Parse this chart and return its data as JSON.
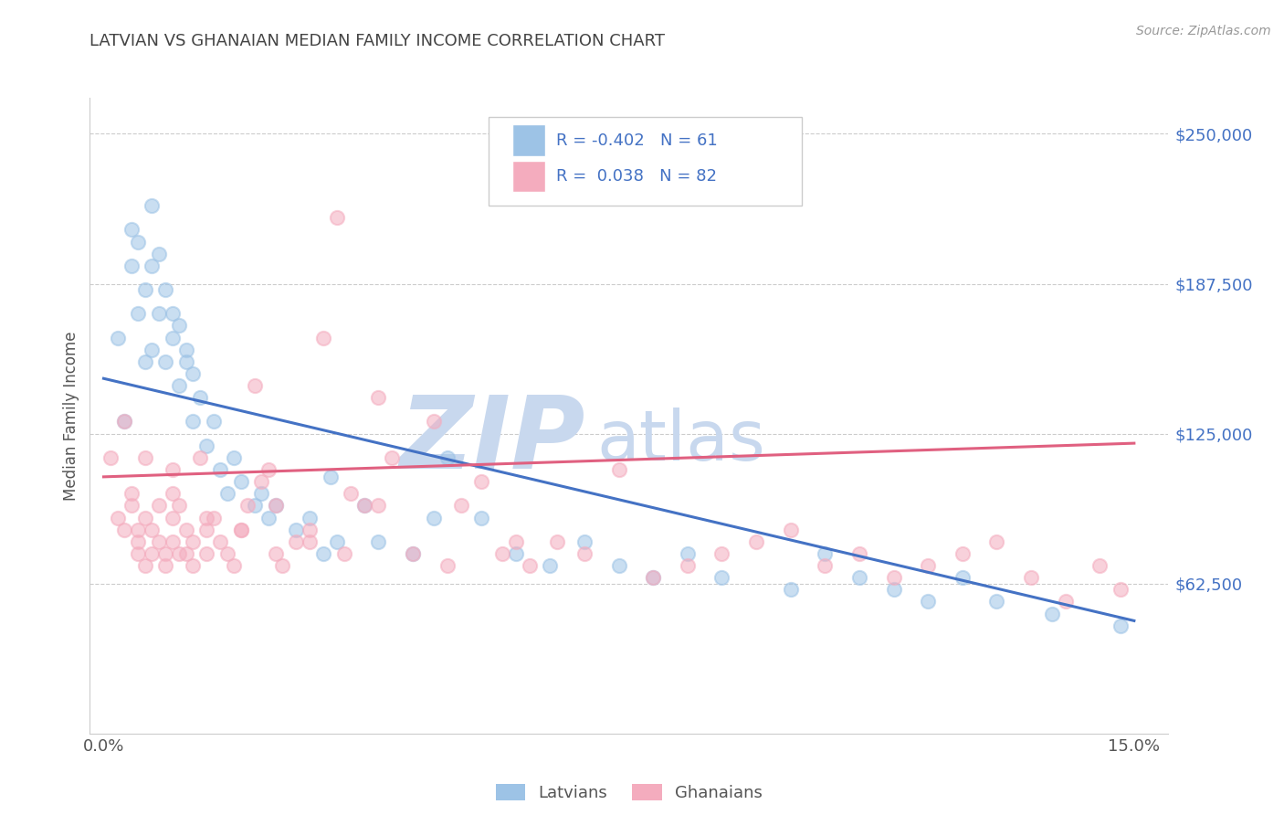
{
  "title": "LATVIAN VS GHANAIAN MEDIAN FAMILY INCOME CORRELATION CHART",
  "source_text": "Source: ZipAtlas.com",
  "ylabel": "Median Family Income",
  "xlim": [
    -0.002,
    0.155
  ],
  "ylim": [
    0,
    265000
  ],
  "yticks": [
    62500,
    125000,
    187500,
    250000
  ],
  "ytick_labels": [
    "$62,500",
    "$125,000",
    "$187,500",
    "$250,000"
  ],
  "xticks": [
    0.0,
    0.15
  ],
  "xtick_labels": [
    "0.0%",
    "15.0%"
  ],
  "background_color": "#ffffff",
  "grid_color": "#cccccc",
  "title_color": "#444444",
  "axis_label_color": "#555555",
  "ytick_color": "#4472c4",
  "xtick_color": "#555555",
  "latvian_color": "#9dc3e6",
  "ghanaian_color": "#f4acbe",
  "latvian_line_color": "#4472c4",
  "ghanaian_line_color": "#e06080",
  "legend_R1": "-0.402",
  "legend_N1": "61",
  "legend_R2": "0.038",
  "legend_N2": "82",
  "legend_label1": "Latvians",
  "legend_label2": "Ghanaians",
  "watermark_zip": "ZIP",
  "watermark_atlas": "atlas",
  "watermark_color": "#c8d8ee",
  "latvian_scatter_x": [
    0.002,
    0.003,
    0.004,
    0.004,
    0.005,
    0.005,
    0.006,
    0.006,
    0.007,
    0.007,
    0.007,
    0.008,
    0.008,
    0.009,
    0.009,
    0.01,
    0.01,
    0.011,
    0.011,
    0.012,
    0.012,
    0.013,
    0.013,
    0.014,
    0.015,
    0.016,
    0.017,
    0.018,
    0.019,
    0.02,
    0.022,
    0.023,
    0.024,
    0.025,
    0.028,
    0.03,
    0.032,
    0.034,
    0.038,
    0.04,
    0.045,
    0.05,
    0.055,
    0.06,
    0.065,
    0.07,
    0.075,
    0.08,
    0.085,
    0.09,
    0.1,
    0.105,
    0.11,
    0.115,
    0.12,
    0.125,
    0.13,
    0.138,
    0.148,
    0.033,
    0.048
  ],
  "latvian_scatter_y": [
    165000,
    130000,
    195000,
    210000,
    175000,
    205000,
    185000,
    155000,
    195000,
    160000,
    220000,
    175000,
    200000,
    155000,
    185000,
    175000,
    165000,
    145000,
    170000,
    155000,
    160000,
    130000,
    150000,
    140000,
    120000,
    130000,
    110000,
    100000,
    115000,
    105000,
    95000,
    100000,
    90000,
    95000,
    85000,
    90000,
    75000,
    80000,
    95000,
    80000,
    75000,
    115000,
    90000,
    75000,
    70000,
    80000,
    70000,
    65000,
    75000,
    65000,
    60000,
    75000,
    65000,
    60000,
    55000,
    65000,
    55000,
    50000,
    45000,
    107000,
    90000
  ],
  "ghanaian_scatter_x": [
    0.001,
    0.002,
    0.003,
    0.003,
    0.004,
    0.004,
    0.005,
    0.005,
    0.005,
    0.006,
    0.006,
    0.006,
    0.007,
    0.007,
    0.008,
    0.008,
    0.009,
    0.009,
    0.01,
    0.01,
    0.01,
    0.011,
    0.011,
    0.012,
    0.012,
    0.013,
    0.013,
    0.014,
    0.015,
    0.015,
    0.016,
    0.017,
    0.018,
    0.019,
    0.02,
    0.021,
    0.022,
    0.023,
    0.024,
    0.025,
    0.026,
    0.028,
    0.03,
    0.032,
    0.034,
    0.036,
    0.038,
    0.04,
    0.042,
    0.045,
    0.048,
    0.052,
    0.055,
    0.058,
    0.062,
    0.066,
    0.07,
    0.075,
    0.08,
    0.085,
    0.09,
    0.095,
    0.1,
    0.105,
    0.11,
    0.115,
    0.12,
    0.125,
    0.13,
    0.135,
    0.14,
    0.145,
    0.148,
    0.01,
    0.015,
    0.02,
    0.025,
    0.03,
    0.035,
    0.04,
    0.05,
    0.06
  ],
  "ghanaian_scatter_y": [
    115000,
    90000,
    85000,
    130000,
    95000,
    100000,
    85000,
    75000,
    80000,
    90000,
    70000,
    115000,
    85000,
    75000,
    95000,
    80000,
    75000,
    70000,
    80000,
    110000,
    90000,
    75000,
    95000,
    85000,
    75000,
    80000,
    70000,
    115000,
    85000,
    75000,
    90000,
    80000,
    75000,
    70000,
    85000,
    95000,
    145000,
    105000,
    110000,
    75000,
    70000,
    80000,
    85000,
    165000,
    215000,
    100000,
    95000,
    140000,
    115000,
    75000,
    130000,
    95000,
    105000,
    75000,
    70000,
    80000,
    75000,
    110000,
    65000,
    70000,
    75000,
    80000,
    85000,
    70000,
    75000,
    65000,
    70000,
    75000,
    80000,
    65000,
    55000,
    70000,
    60000,
    100000,
    90000,
    85000,
    95000,
    80000,
    75000,
    95000,
    70000,
    80000
  ],
  "blue_line_x": [
    0.0,
    0.15
  ],
  "blue_line_y": [
    148000,
    47000
  ],
  "pink_line_x": [
    0.0,
    0.15
  ],
  "pink_line_y": [
    107000,
    121000
  ]
}
